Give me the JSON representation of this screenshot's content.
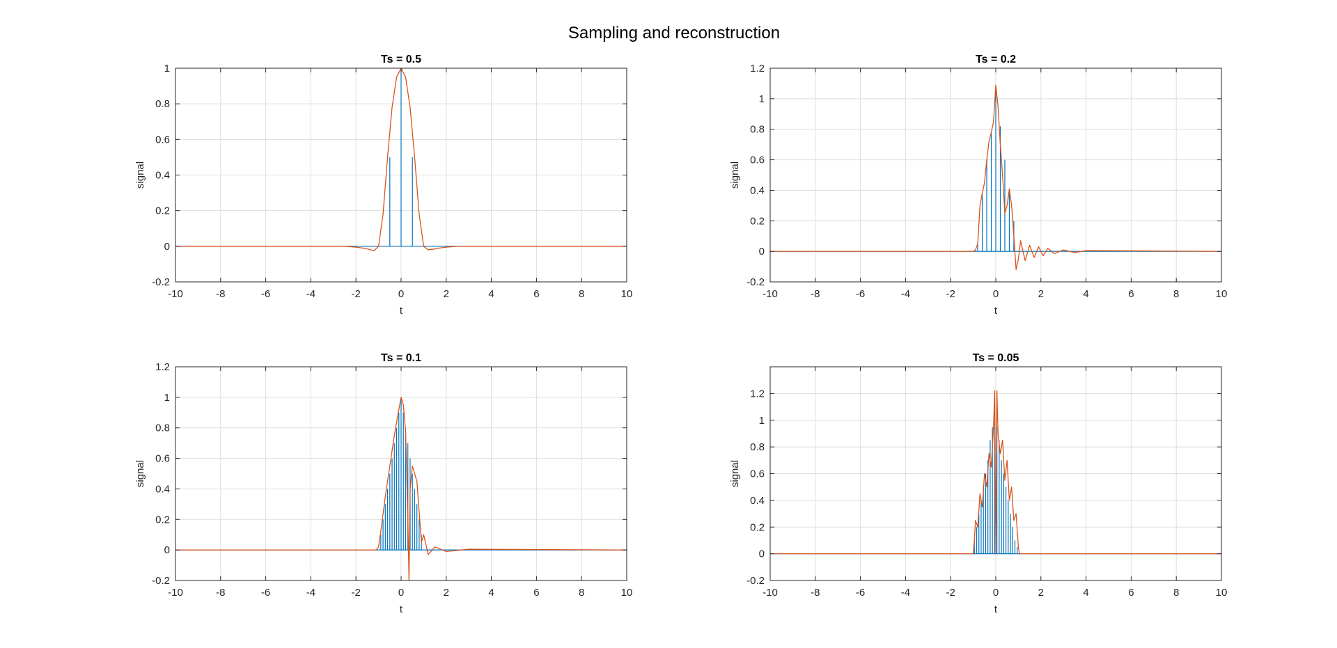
{
  "figure": {
    "title": "Sampling and reconstruction"
  },
  "colors": {
    "stem": "#0072BD",
    "reconstruction": "#D95319",
    "grid": "#dedede",
    "axis": "#262626"
  },
  "chart_data": [
    {
      "type": "line",
      "title": "Ts = 0.5",
      "xlabel": "t",
      "ylabel": "signal",
      "xlim": [
        -10,
        10
      ],
      "ylim": [
        -0.2,
        1
      ],
      "xticks": [
        -10,
        -8,
        -6,
        -4,
        -2,
        0,
        2,
        4,
        6,
        8,
        10
      ],
      "yticks": [
        -0.2,
        0,
        0.2,
        0.4,
        0.6,
        0.8,
        1
      ],
      "grid": true,
      "series": [
        {
          "kind": "stem",
          "x": [
            -0.5,
            0,
            0.5
          ],
          "y": [
            0.5,
            1,
            0.5
          ]
        },
        {
          "kind": "line",
          "x": [
            -10,
            -3,
            -2.5,
            -2,
            -1.7,
            -1.5,
            -1.2,
            -1,
            -0.8,
            -0.6,
            -0.4,
            -0.2,
            0,
            0.2,
            0.4,
            0.6,
            0.8,
            1,
            1.2,
            1.5,
            1.7,
            2,
            2.5,
            3,
            10
          ],
          "y": [
            0,
            0,
            0,
            -0.005,
            -0.01,
            -0.015,
            -0.025,
            0,
            0.18,
            0.5,
            0.78,
            0.95,
            1,
            0.95,
            0.78,
            0.5,
            0.18,
            0,
            -0.02,
            -0.015,
            -0.01,
            -0.005,
            0,
            0,
            0
          ]
        }
      ]
    },
    {
      "type": "line",
      "title": "Ts = 0.2",
      "xlabel": "t",
      "ylabel": "signal",
      "xlim": [
        -10,
        10
      ],
      "ylim": [
        -0.2,
        1.2
      ],
      "xticks": [
        -10,
        -8,
        -6,
        -4,
        -2,
        0,
        2,
        4,
        6,
        8,
        10
      ],
      "yticks": [
        -0.2,
        0,
        0.2,
        0.4,
        0.6,
        0.8,
        1,
        1.2
      ],
      "grid": true,
      "series": [
        {
          "kind": "stem",
          "x": [
            -0.8,
            -0.6,
            -0.4,
            -0.2,
            0,
            0.2,
            0.4,
            0.6,
            0.8
          ],
          "y": [
            0.05,
            0.38,
            0.6,
            0.78,
            1.05,
            0.82,
            0.6,
            0.41,
            0.2
          ]
        },
        {
          "kind": "line",
          "x": [
            -10,
            -1.2,
            -1,
            -0.9,
            -0.8,
            -0.7,
            -0.6,
            -0.5,
            -0.4,
            -0.3,
            -0.2,
            -0.1,
            0,
            0.1,
            0.2,
            0.3,
            0.4,
            0.5,
            0.6,
            0.7,
            0.8,
            0.9,
            1,
            1.1,
            1.3,
            1.5,
            1.7,
            1.9,
            2.1,
            2.3,
            2.6,
            3,
            3.5,
            4,
            10
          ],
          "y": [
            0,
            0,
            0,
            0.01,
            0.05,
            0.3,
            0.38,
            0.45,
            0.6,
            0.72,
            0.78,
            0.85,
            1.09,
            0.95,
            0.7,
            0.5,
            0.25,
            0.3,
            0.41,
            0.3,
            0.1,
            -0.12,
            -0.05,
            0.07,
            -0.06,
            0.04,
            -0.04,
            0.03,
            -0.03,
            0.02,
            -0.015,
            0.01,
            -0.008,
            0.005,
            0
          ]
        }
      ]
    },
    {
      "type": "line",
      "title": "Ts = 0.1",
      "xlabel": "t",
      "ylabel": "signal",
      "xlim": [
        -10,
        10
      ],
      "ylim": [
        -0.2,
        1.2
      ],
      "xticks": [
        -10,
        -8,
        -6,
        -4,
        -2,
        0,
        2,
        4,
        6,
        8,
        10
      ],
      "yticks": [
        -0.2,
        0,
        0.2,
        0.4,
        0.6,
        0.8,
        1,
        1.2
      ],
      "grid": true,
      "series": [
        {
          "kind": "stem",
          "x": [
            -0.9,
            -0.8,
            -0.7,
            -0.6,
            -0.5,
            -0.4,
            -0.3,
            -0.2,
            -0.1,
            0,
            0.1,
            0.2,
            0.3,
            0.4,
            0.5,
            0.6,
            0.7,
            0.8,
            0.9
          ],
          "y": [
            0.1,
            0.2,
            0.3,
            0.4,
            0.5,
            0.6,
            0.7,
            0.8,
            0.9,
            1,
            0.9,
            0.8,
            0.7,
            0.6,
            0.5,
            0.4,
            0.3,
            0.2,
            0.1
          ]
        },
        {
          "kind": "line",
          "x": [
            -10,
            -1.1,
            -1,
            -0.9,
            -0.7,
            -0.5,
            -0.3,
            -0.1,
            0,
            0.1,
            0.2,
            0.3,
            0.35,
            0.4,
            0.5,
            0.6,
            0.7,
            0.8,
            0.9,
            1,
            1.2,
            1.5,
            2,
            3,
            10
          ],
          "y": [
            0,
            0,
            0.02,
            0.12,
            0.35,
            0.55,
            0.75,
            0.92,
            1,
            0.95,
            0.78,
            0.2,
            -0.2,
            0.4,
            0.55,
            0.5,
            0.45,
            0.25,
            0.05,
            0.1,
            -0.03,
            0.02,
            -0.01,
            0.005,
            0
          ]
        }
      ]
    },
    {
      "type": "line",
      "title": "Ts = 0.05",
      "xlabel": "t",
      "ylabel": "signal",
      "xlim": [
        -10,
        10
      ],
      "ylim": [
        -0.2,
        1.4
      ],
      "xticks": [
        -10,
        -8,
        -6,
        -4,
        -2,
        0,
        2,
        4,
        6,
        8,
        10
      ],
      "yticks": [
        -0.2,
        0,
        0.2,
        0.4,
        0.6,
        0.8,
        1,
        1.2
      ],
      "grid": true,
      "series": [
        {
          "kind": "stem",
          "x": [
            -0.95,
            -0.85,
            -0.75,
            -0.65,
            -0.55,
            -0.45,
            -0.35,
            -0.25,
            -0.15,
            -0.05,
            0.05,
            0.15,
            0.25,
            0.35,
            0.45,
            0.55,
            0.65,
            0.75,
            0.85,
            0.95
          ],
          "y": [
            0.1,
            0.2,
            0.3,
            0.4,
            0.5,
            0.6,
            0.7,
            0.85,
            0.95,
            1,
            0.95,
            0.85,
            0.7,
            0.6,
            0.5,
            0.4,
            0.3,
            0.2,
            0.1,
            0.05
          ]
        },
        {
          "kind": "line",
          "x": [
            -10,
            -1,
            -0.95,
            -0.9,
            -0.8,
            -0.7,
            -0.6,
            -0.5,
            -0.4,
            -0.3,
            -0.2,
            -0.1,
            -0.05,
            0,
            0.05,
            0.1,
            0.2,
            0.3,
            0.4,
            0.5,
            0.6,
            0.7,
            0.8,
            0.9,
            1,
            1.05,
            10
          ],
          "y": [
            0,
            0,
            0.1,
            0.25,
            0.2,
            0.45,
            0.35,
            0.6,
            0.5,
            0.75,
            0.65,
            0.95,
            1.22,
            0,
            1.22,
            0.9,
            0.75,
            0.85,
            0.55,
            0.7,
            0.4,
            0.5,
            0.25,
            0.3,
            0.05,
            0,
            0
          ]
        }
      ]
    }
  ]
}
